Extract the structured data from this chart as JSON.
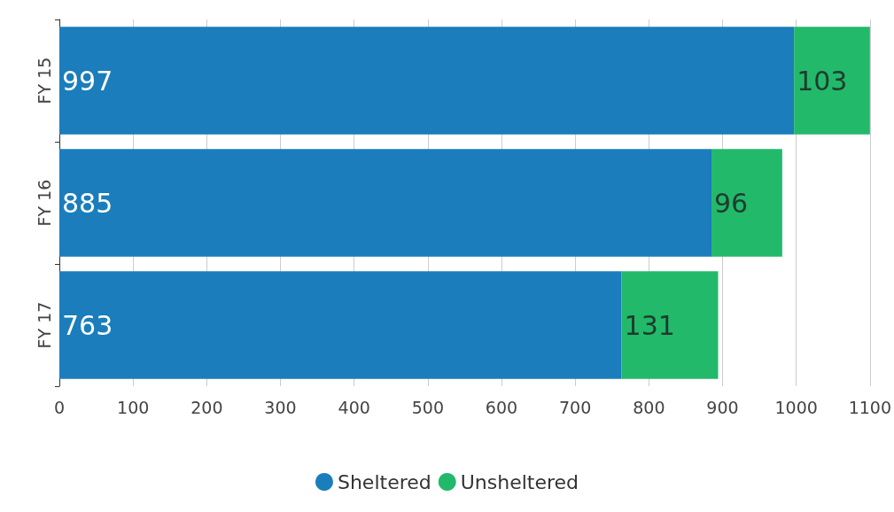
{
  "chart_data": {
    "type": "bar",
    "orientation": "horizontal",
    "stacked": true,
    "categories": [
      "FY 15",
      "FY 16",
      "FY 17"
    ],
    "series": [
      {
        "name": "Sheltered",
        "color": "#1b7dbb",
        "values": [
          997,
          885,
          763
        ]
      },
      {
        "name": "Unsheltered",
        "color": "#22b96b",
        "values": [
          103,
          96,
          131
        ]
      }
    ],
    "xlim": [
      0,
      1100
    ],
    "xticks": [
      0,
      100,
      200,
      300,
      400,
      500,
      600,
      700,
      800,
      900,
      1000,
      1100
    ],
    "grid": "x",
    "legend": "bottom",
    "data_labels": true
  }
}
